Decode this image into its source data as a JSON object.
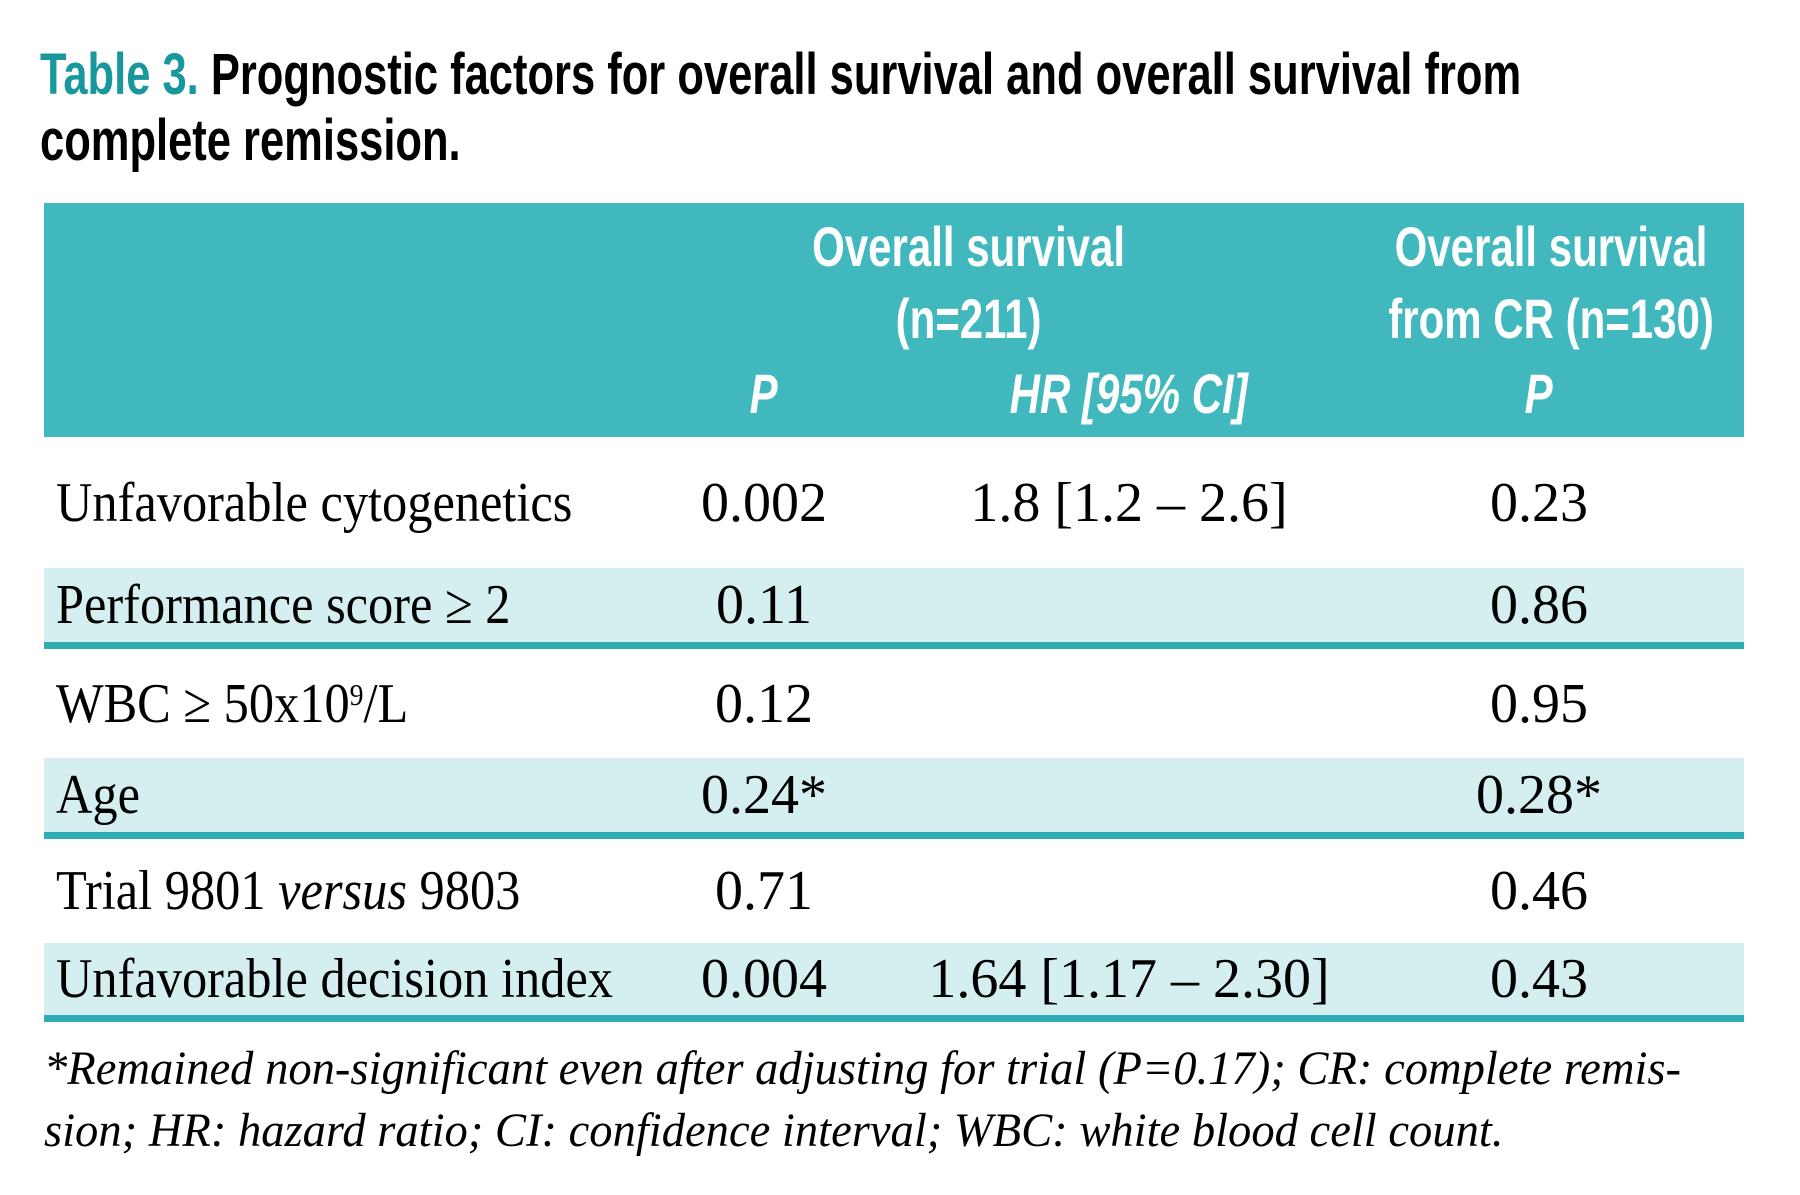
{
  "title": {
    "label": "Table 3.",
    "line1_rest": " Prognostic factors for overall survival and overall survival from",
    "line2": "complete remission."
  },
  "colors": {
    "header_teal": "#40b8bd",
    "shaded_row": "#d5eff1",
    "divider_teal": "#2eadb3",
    "title_accent": "#18979d"
  },
  "table": {
    "col_groups": [
      {
        "line1": "Overall survival",
        "line2": "(n=211)"
      },
      {
        "line1": "Overall survival",
        "line2": "from CR (n=130)"
      }
    ],
    "sub_headers": [
      "P",
      "HR [95% CI]",
      "P"
    ],
    "rows": [
      {
        "label_parts": [
          {
            "t": "Unfavorable cytogenetics"
          }
        ],
        "p_os": "0.002",
        "hr": "1.8 [1.2 – 2.6]",
        "p_cr": "0.23",
        "shaded": false
      },
      {
        "label_parts": [
          {
            "t": "Performance score ≥ 2"
          }
        ],
        "p_os": "0.11",
        "hr": "",
        "p_cr": "0.86",
        "shaded": true
      },
      {
        "label_parts": [
          {
            "t": "WBC ≥ 50x10"
          },
          {
            "t": "9",
            "sup": true
          },
          {
            "t": "/L"
          }
        ],
        "p_os": "0.12",
        "hr": "",
        "p_cr": "0.95",
        "shaded": false
      },
      {
        "label_parts": [
          {
            "t": "Age"
          }
        ],
        "p_os": "0.24*",
        "hr": "",
        "p_cr": "0.28*",
        "shaded": true
      },
      {
        "label_parts": [
          {
            "t": "Trial 9801 "
          },
          {
            "t": "versus",
            "i": true
          },
          {
            "t": " 9803"
          }
        ],
        "p_os": "0.71",
        "hr": "",
        "p_cr": "0.46",
        "shaded": false
      },
      {
        "label_parts": [
          {
            "t": "Unfavorable decision index"
          }
        ],
        "p_os": "0.004",
        "hr": "1.64 [1.17 – 2.30]",
        "p_cr": "0.43",
        "shaded": true
      }
    ]
  },
  "footnote": {
    "line1": "*Remained non-significant even after adjusting for trial (P=0.17); CR: complete remis-",
    "line2": "sion; HR: hazard ratio; CI: confidence interval; WBC: white blood cell count."
  }
}
